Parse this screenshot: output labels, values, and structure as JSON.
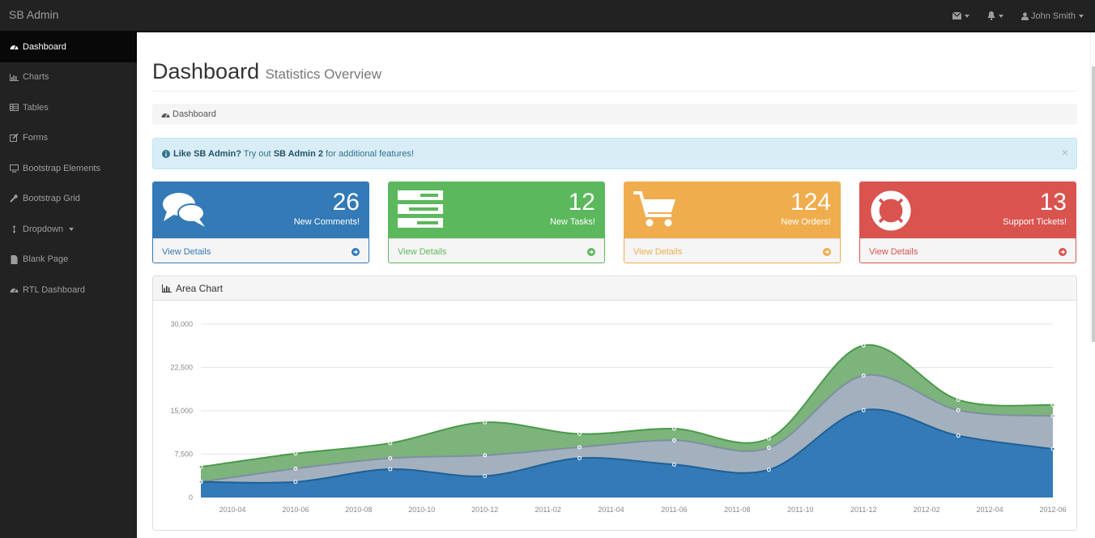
{
  "app": {
    "brand": "SB Admin"
  },
  "topbar": {
    "user_name": "John Smith"
  },
  "sidebar": {
    "items": [
      {
        "label": "Dashboard",
        "icon": "dashboard-icon",
        "active": true
      },
      {
        "label": "Charts",
        "icon": "bar-chart-icon"
      },
      {
        "label": "Tables",
        "icon": "table-icon"
      },
      {
        "label": "Forms",
        "icon": "edit-icon"
      },
      {
        "label": "Bootstrap Elements",
        "icon": "desktop-icon"
      },
      {
        "label": "Bootstrap Grid",
        "icon": "wrench-icon"
      },
      {
        "label": "Dropdown",
        "icon": "arrows-v-icon",
        "has_caret": true
      },
      {
        "label": "Blank Page",
        "icon": "file-icon"
      },
      {
        "label": "RTL Dashboard",
        "icon": "dashboard-icon"
      }
    ]
  },
  "header": {
    "title": "Dashboard",
    "subtitle": "Statistics Overview"
  },
  "breadcrumb": {
    "label": "Dashboard"
  },
  "alert": {
    "strong1": "Like SB Admin?",
    "text1": " Try out ",
    "strong2": "SB Admin 2",
    "text2": " for additional features!",
    "close": "×"
  },
  "stats": [
    {
      "value": "26",
      "label": "New Comments!",
      "link": "View Details",
      "color": "#337ab7",
      "icon": "comments-icon"
    },
    {
      "value": "12",
      "label": "New Tasks!",
      "link": "View Details",
      "color": "#5cb85c",
      "icon": "tasks-icon"
    },
    {
      "value": "124",
      "label": "New Orders!",
      "link": "View Details",
      "color": "#f0ad4e",
      "icon": "shopping-cart-icon"
    },
    {
      "value": "13",
      "label": "Support Tickets!",
      "link": "View Details",
      "color": "#d9534f",
      "icon": "life-ring-icon"
    }
  ],
  "area_panel": {
    "title": "Area Chart"
  },
  "chart_data": {
    "type": "area",
    "stacked": true,
    "title": "Area Chart",
    "x": [
      "2010-03",
      "2010-06",
      "2010-09",
      "2010-12",
      "2011-03",
      "2011-06",
      "2011-09",
      "2011-12",
      "2012-03",
      "2012-06"
    ],
    "x_ticks": [
      "2010-04",
      "2010-06",
      "2010-08",
      "2010-10",
      "2010-12",
      "2011-02",
      "2011-04",
      "2011-06",
      "2011-08",
      "2011-10",
      "2011-12",
      "2012-02",
      "2012-04",
      "2012-06"
    ],
    "ylim": [
      0,
      30000
    ],
    "y_ticks": [
      "30,000",
      "22,500",
      "15,000",
      "7,500",
      "0"
    ],
    "y_tick_values": [
      30000,
      22500,
      15000,
      7500,
      0
    ],
    "series": [
      {
        "values": [
          2700,
          2700,
          4900,
          3700,
          6800,
          5700,
          4800,
          15100,
          10700,
          8400
        ],
        "color": "#337ab7"
      },
      {
        "values": [
          0,
          2300,
          1900,
          3600,
          1900,
          4200,
          3800,
          6000,
          4400,
          5700
        ],
        "color": "#a3b1bf"
      },
      {
        "values": [
          2600,
          2600,
          2600,
          5700,
          2300,
          2000,
          1600,
          5200,
          1800,
          1900
        ],
        "color": "#7cb47c"
      }
    ],
    "grid": true,
    "colors": {
      "blue": "#337ab7",
      "gray": "#a3b1bf",
      "green": "#7cb47c"
    }
  }
}
